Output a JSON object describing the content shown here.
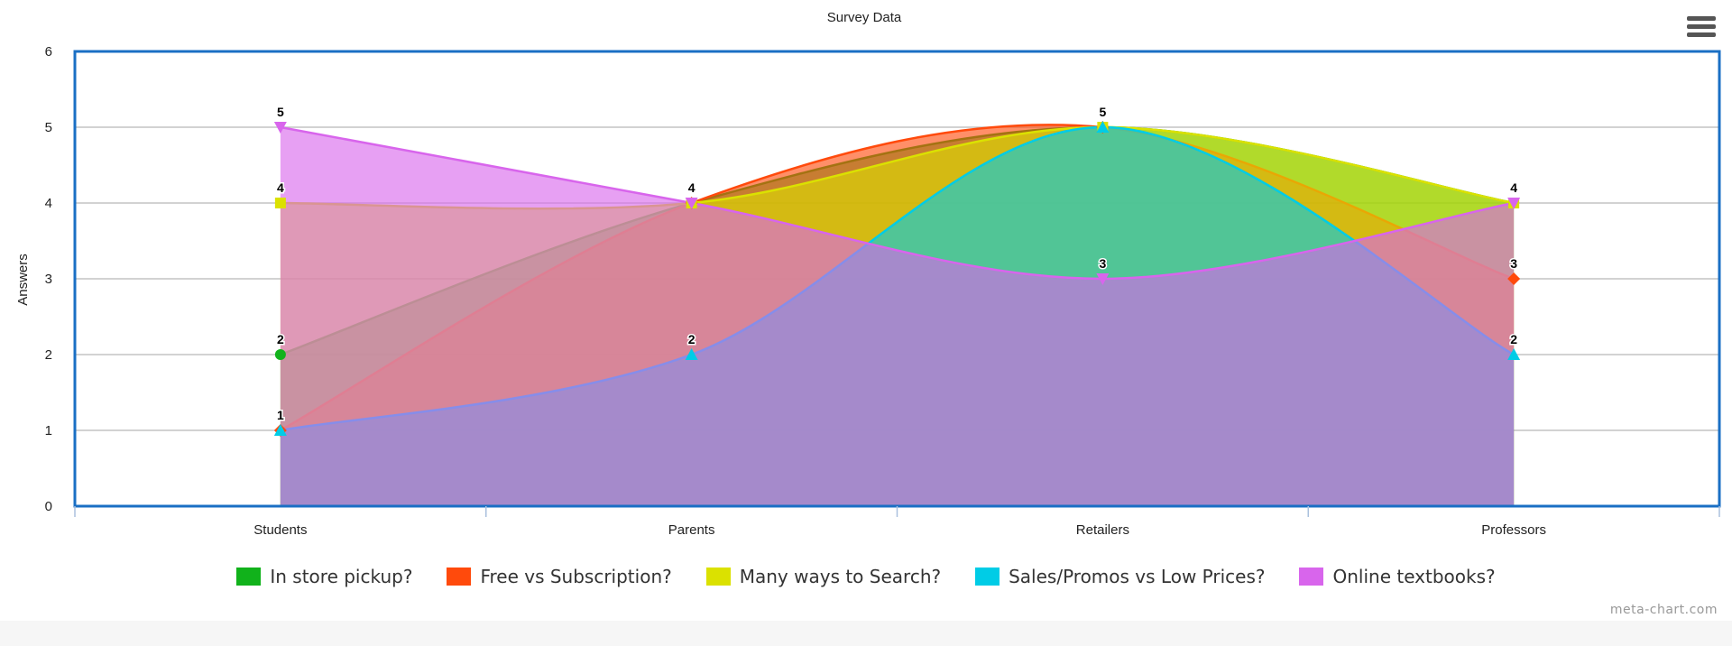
{
  "chart_data": {
    "type": "area",
    "title": "Survey Data",
    "ylabel": "Answers",
    "xlabel": "",
    "categories": [
      "Students",
      "Parents",
      "Retailers",
      "Professors"
    ],
    "ylim": [
      0,
      6
    ],
    "yticks": [
      0,
      1,
      2,
      3,
      4,
      5,
      6
    ],
    "grid": true,
    "legend_position": "bottom",
    "series": [
      {
        "name": "In store pickup?",
        "values": [
          2,
          4,
          5,
          4
        ],
        "color": "#11b21b",
        "marker": "circle"
      },
      {
        "name": "Free vs Subscription?",
        "values": [
          1,
          4,
          5,
          3
        ],
        "color": "#ff4a0c",
        "marker": "diamond"
      },
      {
        "name": "Many ways to Search?",
        "values": [
          4,
          4,
          5,
          4
        ],
        "color": "#dbe100",
        "marker": "square"
      },
      {
        "name": "Sales/Promos vs Low Prices?",
        "values": [
          1,
          2,
          5,
          2
        ],
        "color": "#00cce6",
        "marker": "triangle"
      },
      {
        "name": "Online textbooks?",
        "values": [
          5,
          4,
          3,
          4
        ],
        "color": "#d865ec",
        "marker": "triangle-down"
      }
    ]
  },
  "credits": "meta-chart.com",
  "menu": {
    "icon": "hamburger-menu-icon"
  }
}
